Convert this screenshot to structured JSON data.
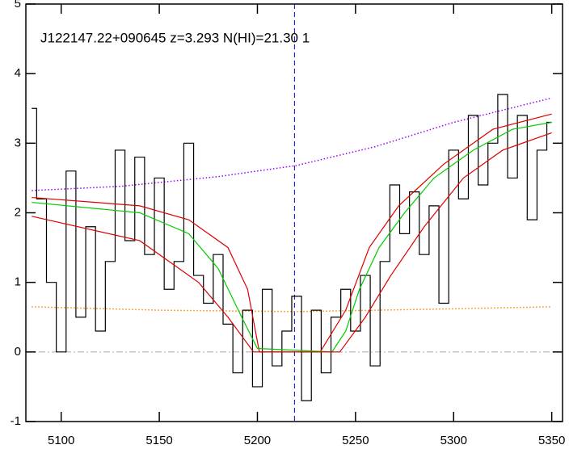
{
  "chart_data": {
    "type": "line",
    "title": "J122147.22+090645 z=3.293 N(HI)=21.30 1",
    "xlim": [
      5082,
      5355.5
    ],
    "ylim": [
      -1,
      5
    ],
    "xticks": [
      5100,
      5150,
      5200,
      5250,
      5300,
      5350
    ],
    "yticks": [
      -1,
      0,
      1,
      2,
      3,
      4,
      5
    ],
    "vline": 5218.9,
    "vline_color": "#0000cc",
    "hline": 0,
    "hline_color": "#aaaaaa",
    "series": [
      {
        "color": "#ff8800",
        "style": "dotted",
        "x": [
          5085,
          5150,
          5220,
          5300,
          5350
        ],
        "values": [
          0.65,
          0.6,
          0.58,
          0.62,
          0.65
        ]
      },
      {
        "color": "#9900ff",
        "style": "dotted",
        "x": [
          5085,
          5130,
          5180,
          5220,
          5260,
          5300,
          5350
        ],
        "values": [
          2.32,
          2.38,
          2.52,
          2.68,
          2.95,
          3.3,
          3.65
        ]
      },
      {
        "color": "#000000",
        "style": "step",
        "x": [
          5085,
          5090,
          5095,
          5100,
          5105,
          5110,
          5115,
          5120,
          5125,
          5130,
          5135,
          5140,
          5145,
          5150,
          5155,
          5160,
          5165,
          5170,
          5175,
          5180,
          5185,
          5190,
          5195,
          5200,
          5205,
          5210,
          5215,
          5220,
          5225,
          5230,
          5235,
          5240,
          5245,
          5250,
          5255,
          5260,
          5265,
          5270,
          5275,
          5280,
          5285,
          5290,
          5295,
          5300,
          5305,
          5310,
          5315,
          5320,
          5325,
          5330,
          5335,
          5340,
          5345,
          5350
        ],
        "values": [
          3.5,
          2.2,
          1.0,
          0.0,
          2.6,
          0.5,
          1.8,
          0.3,
          1.3,
          2.9,
          1.6,
          2.8,
          1.4,
          2.5,
          0.9,
          1.3,
          3.0,
          1.1,
          0.7,
          1.4,
          0.4,
          -0.3,
          0.6,
          -0.5,
          0.9,
          -0.2,
          0.3,
          0.8,
          -0.7,
          0.6,
          -0.3,
          0.5,
          0.9,
          0.3,
          1.1,
          -0.2,
          1.3,
          2.4,
          1.7,
          2.3,
          1.4,
          2.1,
          0.7,
          2.9,
          2.2,
          3.4,
          2.4,
          3.0,
          3.7,
          2.5,
          3.4,
          1.9,
          2.9,
          3.3
        ]
      },
      {
        "color": "#dd0000",
        "style": "solid",
        "x": [
          5085,
          5140,
          5165,
          5185,
          5195,
          5201,
          5232,
          5245,
          5257,
          5272,
          5295,
          5320,
          5350
        ],
        "values": [
          2.22,
          2.1,
          1.9,
          1.5,
          0.9,
          0.0,
          0.0,
          0.6,
          1.5,
          2.1,
          2.7,
          3.2,
          3.42
        ]
      },
      {
        "color": "#00cc00",
        "style": "solid",
        "x": [
          5085,
          5140,
          5165,
          5180,
          5192,
          5200,
          5238,
          5245,
          5252,
          5262,
          5275,
          5290,
          5310,
          5330,
          5350
        ],
        "values": [
          2.15,
          2.0,
          1.7,
          1.2,
          0.5,
          0.05,
          0.0,
          0.3,
          0.9,
          1.5,
          2.0,
          2.5,
          2.9,
          3.2,
          3.3
        ]
      },
      {
        "color": "#dd0000",
        "style": "solid",
        "x": [
          5085,
          5140,
          5170,
          5185,
          5198,
          5242,
          5255,
          5268,
          5285,
          5305,
          5325,
          5350
        ],
        "values": [
          1.95,
          1.6,
          1.0,
          0.5,
          0.0,
          0.0,
          0.5,
          1.1,
          1.8,
          2.5,
          2.9,
          3.15
        ]
      }
    ]
  }
}
